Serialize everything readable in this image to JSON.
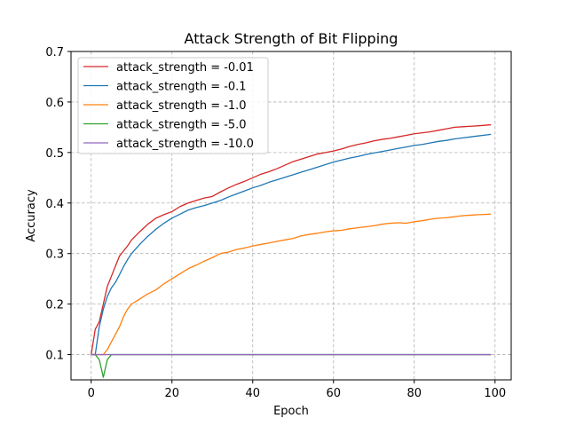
{
  "chart_data": {
    "type": "line",
    "title": "Attack Strength of Bit Flipping",
    "xlabel": "Epoch",
    "ylabel": "Accuracy",
    "xlim": [
      -5,
      104
    ],
    "ylim": [
      0.05,
      0.7
    ],
    "xticks": [
      0,
      20,
      40,
      60,
      80,
      100
    ],
    "yticks": [
      0.1,
      0.2,
      0.3,
      0.4,
      0.5,
      0.6,
      0.7
    ],
    "xtick_labels": [
      "0",
      "20",
      "40",
      "60",
      "80",
      "100"
    ],
    "ytick_labels": [
      "0.1",
      "0.2",
      "0.3",
      "0.4",
      "0.5",
      "0.6",
      "0.7"
    ],
    "grid": true,
    "legend_position": "top-left",
    "series": [
      {
        "name": "attack_strength = -0.01",
        "color": "#d62728",
        "points": [
          [
            0,
            0.1
          ],
          [
            1,
            0.15
          ],
          [
            2,
            0.165
          ],
          [
            3,
            0.2
          ],
          [
            4,
            0.235
          ],
          [
            5,
            0.255
          ],
          [
            6,
            0.275
          ],
          [
            7,
            0.295
          ],
          [
            8,
            0.305
          ],
          [
            9,
            0.315
          ],
          [
            10,
            0.327
          ],
          [
            12,
            0.343
          ],
          [
            14,
            0.358
          ],
          [
            16,
            0.37
          ],
          [
            18,
            0.377
          ],
          [
            20,
            0.383
          ],
          [
            22,
            0.393
          ],
          [
            24,
            0.4
          ],
          [
            26,
            0.405
          ],
          [
            28,
            0.41
          ],
          [
            30,
            0.413
          ],
          [
            32,
            0.422
          ],
          [
            34,
            0.43
          ],
          [
            36,
            0.437
          ],
          [
            38,
            0.443
          ],
          [
            40,
            0.45
          ],
          [
            42,
            0.457
          ],
          [
            44,
            0.462
          ],
          [
            46,
            0.468
          ],
          [
            48,
            0.475
          ],
          [
            50,
            0.482
          ],
          [
            52,
            0.487
          ],
          [
            54,
            0.492
          ],
          [
            56,
            0.497
          ],
          [
            58,
            0.5
          ],
          [
            60,
            0.503
          ],
          [
            62,
            0.507
          ],
          [
            64,
            0.512
          ],
          [
            66,
            0.516
          ],
          [
            68,
            0.519
          ],
          [
            70,
            0.523
          ],
          [
            72,
            0.526
          ],
          [
            74,
            0.528
          ],
          [
            76,
            0.531
          ],
          [
            78,
            0.534
          ],
          [
            80,
            0.537
          ],
          [
            82,
            0.539
          ],
          [
            84,
            0.541
          ],
          [
            86,
            0.544
          ],
          [
            88,
            0.547
          ],
          [
            90,
            0.55
          ],
          [
            92,
            0.551
          ],
          [
            94,
            0.552
          ],
          [
            96,
            0.553
          ],
          [
            99,
            0.555
          ]
        ]
      },
      {
        "name": "attack_strength = -0.1",
        "color": "#1f77b4",
        "points": [
          [
            0,
            0.1
          ],
          [
            1,
            0.1
          ],
          [
            2,
            0.155
          ],
          [
            3,
            0.19
          ],
          [
            4,
            0.215
          ],
          [
            5,
            0.232
          ],
          [
            6,
            0.243
          ],
          [
            7,
            0.258
          ],
          [
            8,
            0.274
          ],
          [
            9,
            0.288
          ],
          [
            10,
            0.3
          ],
          [
            12,
            0.318
          ],
          [
            14,
            0.334
          ],
          [
            16,
            0.348
          ],
          [
            18,
            0.36
          ],
          [
            20,
            0.37
          ],
          [
            22,
            0.378
          ],
          [
            24,
            0.386
          ],
          [
            26,
            0.391
          ],
          [
            28,
            0.395
          ],
          [
            30,
            0.4
          ],
          [
            32,
            0.405
          ],
          [
            34,
            0.412
          ],
          [
            36,
            0.418
          ],
          [
            38,
            0.424
          ],
          [
            40,
            0.43
          ],
          [
            42,
            0.435
          ],
          [
            44,
            0.441
          ],
          [
            46,
            0.446
          ],
          [
            48,
            0.451
          ],
          [
            50,
            0.456
          ],
          [
            52,
            0.461
          ],
          [
            54,
            0.466
          ],
          [
            56,
            0.471
          ],
          [
            58,
            0.476
          ],
          [
            60,
            0.481
          ],
          [
            62,
            0.485
          ],
          [
            64,
            0.489
          ],
          [
            66,
            0.492
          ],
          [
            68,
            0.496
          ],
          [
            70,
            0.499
          ],
          [
            72,
            0.502
          ],
          [
            74,
            0.505
          ],
          [
            76,
            0.508
          ],
          [
            78,
            0.511
          ],
          [
            80,
            0.514
          ],
          [
            82,
            0.516
          ],
          [
            84,
            0.519
          ],
          [
            86,
            0.522
          ],
          [
            88,
            0.524
          ],
          [
            90,
            0.527
          ],
          [
            92,
            0.529
          ],
          [
            94,
            0.531
          ],
          [
            96,
            0.533
          ],
          [
            99,
            0.536
          ]
        ]
      },
      {
        "name": "attack_strength = -1.0",
        "color": "#ff7f0e",
        "points": [
          [
            0,
            0.1
          ],
          [
            1,
            0.1
          ],
          [
            2,
            0.1
          ],
          [
            3,
            0.1
          ],
          [
            4,
            0.11
          ],
          [
            5,
            0.125
          ],
          [
            6,
            0.14
          ],
          [
            7,
            0.155
          ],
          [
            8,
            0.175
          ],
          [
            9,
            0.19
          ],
          [
            10,
            0.2
          ],
          [
            12,
            0.21
          ],
          [
            14,
            0.22
          ],
          [
            16,
            0.228
          ],
          [
            18,
            0.24
          ],
          [
            20,
            0.25
          ],
          [
            22,
            0.26
          ],
          [
            24,
            0.27
          ],
          [
            26,
            0.277
          ],
          [
            28,
            0.285
          ],
          [
            30,
            0.292
          ],
          [
            32,
            0.3
          ],
          [
            34,
            0.303
          ],
          [
            36,
            0.308
          ],
          [
            38,
            0.311
          ],
          [
            40,
            0.315
          ],
          [
            42,
            0.318
          ],
          [
            44,
            0.321
          ],
          [
            46,
            0.324
          ],
          [
            48,
            0.327
          ],
          [
            50,
            0.33
          ],
          [
            52,
            0.335
          ],
          [
            54,
            0.338
          ],
          [
            56,
            0.34
          ],
          [
            58,
            0.343
          ],
          [
            60,
            0.345
          ],
          [
            62,
            0.346
          ],
          [
            64,
            0.349
          ],
          [
            66,
            0.351
          ],
          [
            68,
            0.353
          ],
          [
            70,
            0.355
          ],
          [
            72,
            0.358
          ],
          [
            74,
            0.36
          ],
          [
            76,
            0.361
          ],
          [
            78,
            0.36
          ],
          [
            80,
            0.363
          ],
          [
            82,
            0.365
          ],
          [
            84,
            0.368
          ],
          [
            86,
            0.37
          ],
          [
            88,
            0.371
          ],
          [
            90,
            0.373
          ],
          [
            92,
            0.375
          ],
          [
            94,
            0.376
          ],
          [
            96,
            0.377
          ],
          [
            99,
            0.378
          ]
        ]
      },
      {
        "name": "attack_strength = -5.0",
        "color": "#2ca02c",
        "points": [
          [
            0,
            0.1
          ],
          [
            1,
            0.1
          ],
          [
            2,
            0.09
          ],
          [
            3,
            0.055
          ],
          [
            4,
            0.09
          ],
          [
            5,
            0.1
          ],
          [
            99,
            0.1
          ]
        ]
      },
      {
        "name": "attack_strength = -10.0",
        "color": "#9467bd",
        "points": [
          [
            0,
            0.1
          ],
          [
            99,
            0.1
          ]
        ]
      }
    ]
  }
}
